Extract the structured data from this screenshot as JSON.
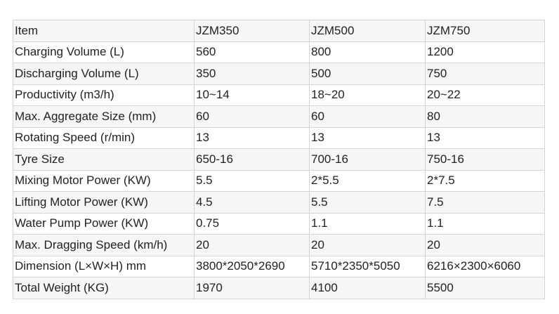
{
  "table": {
    "rows": [
      [
        "Item",
        "JZM350",
        "JZM500",
        "JZM750"
      ],
      [
        "Charging Volume (L)",
        "560",
        "800",
        "1200"
      ],
      [
        "Discharging Volume (L)",
        "350",
        "500",
        "750"
      ],
      [
        "Productivity (m3/h)",
        "10~14",
        "18~20",
        "20~22"
      ],
      [
        "Max. Aggregate Size (mm)",
        "60",
        "60",
        "80"
      ],
      [
        "Rotating Speed (r/min)",
        "13",
        "13",
        "13"
      ],
      [
        "Tyre Size",
        "650-16",
        "700-16",
        "750-16"
      ],
      [
        "Mixing Motor Power (KW)",
        "5.5",
        "2*5.5",
        "2*7.5"
      ],
      [
        "Lifting Motor Power (KW)",
        "4.5",
        "5.5",
        "7.5"
      ],
      [
        "Water Pump Power (KW)",
        "0.75",
        "1.1",
        "1.1"
      ],
      [
        "Max. Dragging Speed (km/h)",
        "20",
        "20",
        "20"
      ],
      [
        "Dimension (L×W×H) mm",
        "3800*2050*2690",
        "5710*2350*5050",
        "6216×2300×6060"
      ],
      [
        "Total Weight (KG)",
        "1970",
        "4100",
        "5500"
      ]
    ]
  }
}
